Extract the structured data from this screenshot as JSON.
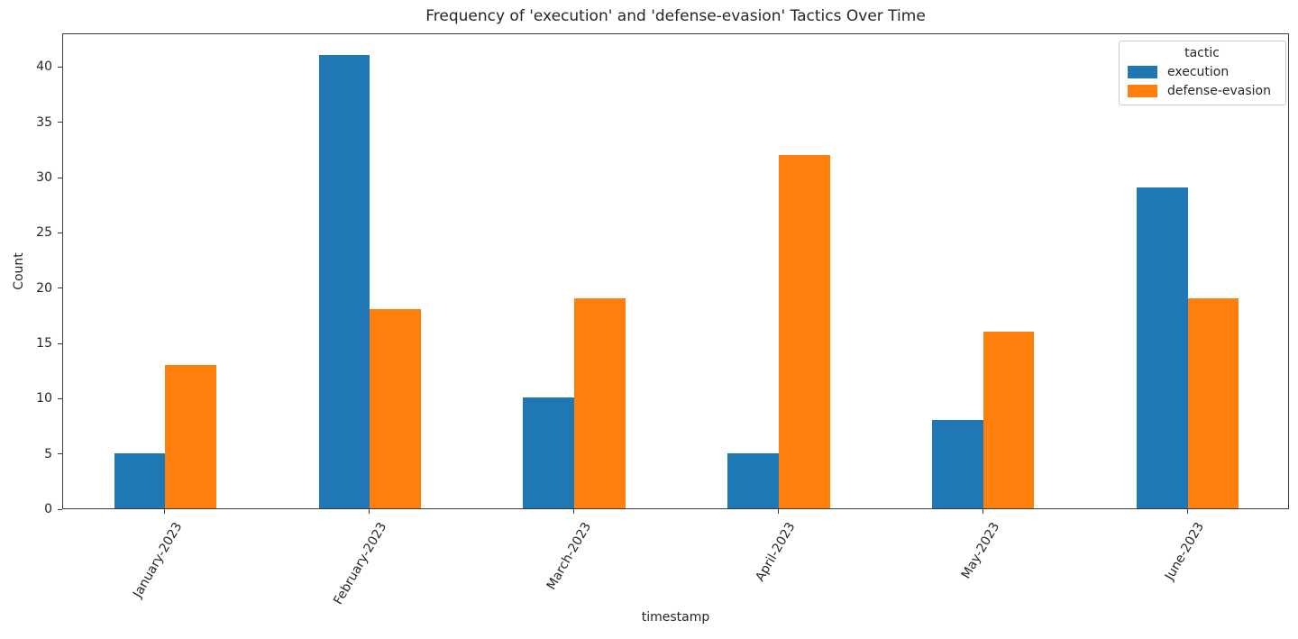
{
  "chart_data": {
    "type": "bar",
    "title": "Frequency of 'execution' and 'defense-evasion' Tactics Over Time",
    "xlabel": "timestamp",
    "ylabel": "Count",
    "categories": [
      "January-2023",
      "February-2023",
      "March-2023",
      "April-2023",
      "May-2023",
      "June-2023"
    ],
    "series": [
      {
        "name": "execution",
        "color": "#1f77b4",
        "values": [
          5,
          41,
          10,
          5,
          8,
          29
        ]
      },
      {
        "name": "defense-evasion",
        "color": "#ff7f0e",
        "values": [
          13,
          18,
          19,
          32,
          16,
          19
        ]
      }
    ],
    "legend": {
      "title": "tactic",
      "position": "upper right"
    },
    "yticks": [
      0,
      5,
      10,
      15,
      20,
      25,
      30,
      35,
      40
    ],
    "ylim": [
      0,
      43.05
    ],
    "grid": false,
    "bar_group_width_fraction": 0.5,
    "xtick_rotation_deg": 60
  }
}
